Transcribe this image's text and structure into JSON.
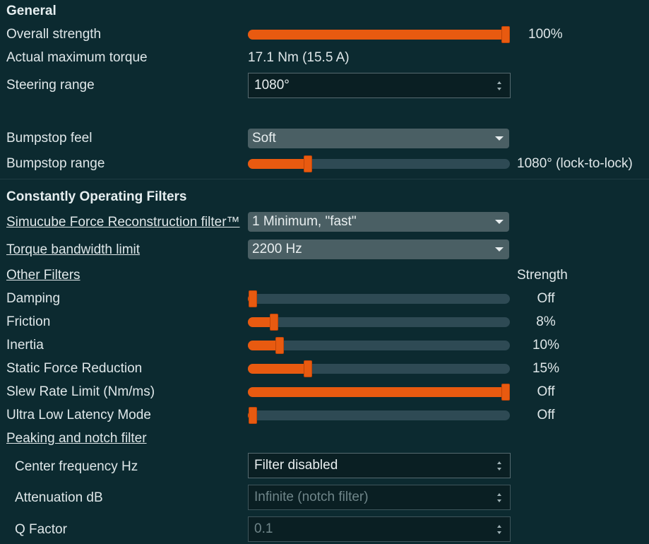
{
  "general": {
    "header": "General",
    "overall_strength": {
      "label": "Overall strength",
      "value": "100%",
      "level": 1.0
    },
    "actual_max_torque": {
      "label": "Actual maximum torque",
      "value": "17.1 Nm (15.5 A)"
    },
    "steering_range": {
      "label": "Steering range",
      "value": "1080°"
    },
    "bumpstop_feel": {
      "label": "Bumpstop feel",
      "value": "Soft"
    },
    "bumpstop_range": {
      "label": "Bumpstop range",
      "value": "1080° (lock-to-lock)",
      "level": 0.23
    }
  },
  "constant_filters": {
    "header": "Constantly Operating Filters",
    "reconstruction": {
      "label": "Simucube Force Reconstruction filter™",
      "value": "1 Minimum, \"fast\""
    },
    "torque_bandwidth": {
      "label": "Torque bandwidth limit",
      "value": "2200 Hz"
    }
  },
  "other_filters": {
    "label": "Other Filters",
    "strength_header": "Strength",
    "items": [
      {
        "label": "Damping",
        "value": "Off",
        "level": 0.02
      },
      {
        "label": "Friction",
        "value": "8%",
        "level": 0.1
      },
      {
        "label": "Inertia",
        "value": "10%",
        "level": 0.12
      },
      {
        "label": "Static Force Reduction",
        "value": "15%",
        "level": 0.23
      },
      {
        "label": "Slew Rate Limit (Nm/ms)",
        "value": "Off",
        "level": 1.0
      },
      {
        "label": "Ultra Low Latency Mode",
        "value": "Off",
        "level": 0.02
      }
    ]
  },
  "notch": {
    "label": "Peaking and notch filter",
    "center_frequency": {
      "label": "Center frequency Hz",
      "value": "Filter disabled"
    },
    "attenuation": {
      "label": "Attenuation dB",
      "value": "Infinite (notch filter)"
    },
    "q_factor": {
      "label": "Q Factor",
      "value": "0.1"
    }
  },
  "colors": {
    "accent": "#e85a10",
    "background": "#0c2a30",
    "track": "#2e4a54"
  }
}
